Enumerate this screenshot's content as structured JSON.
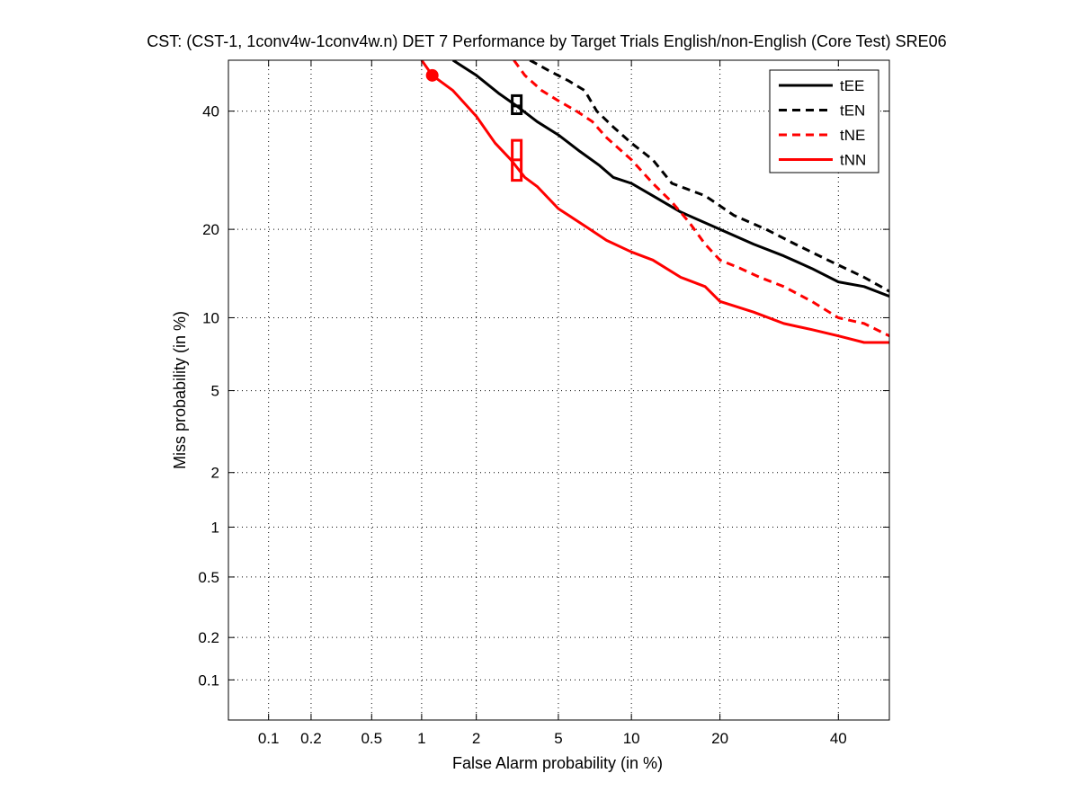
{
  "chart_data": {
    "type": "line",
    "title": "CST: (CST-1, 1conv4w-1conv4w.n) DET 7 Performance by Target Trials English/non-English (Core Test) SRE06",
    "xlabel": "False Alarm probability (in %)",
    "ylabel": "Miss probability (in %)",
    "x_scale": "probit",
    "y_scale": "probit",
    "xlim": [
      0.05,
      50
    ],
    "ylim": [
      0.05,
      50
    ],
    "x_ticks": [
      0.1,
      0.2,
      0.5,
      1,
      2,
      5,
      10,
      20,
      40
    ],
    "x_tick_labels": [
      "0.1",
      "0.2",
      "0.5",
      "1",
      "2",
      "5",
      "10",
      "20",
      "40"
    ],
    "y_ticks": [
      0.1,
      0.2,
      0.5,
      1,
      2,
      5,
      10,
      20,
      40
    ],
    "y_tick_labels": [
      "0.1",
      "0.2",
      "0.5",
      "1",
      "2",
      "5",
      "10",
      "20",
      "40"
    ],
    "grid": true,
    "legend_position": "top-right",
    "series": [
      {
        "name": "tEE",
        "color": "#000000",
        "style": "solid",
        "points": [
          [
            1.5,
            50
          ],
          [
            2.0,
            47
          ],
          [
            2.6,
            43.5
          ],
          [
            3.2,
            41
          ],
          [
            4.0,
            38
          ],
          [
            5.0,
            35.5
          ],
          [
            6.2,
            32.5
          ],
          [
            7.5,
            30
          ],
          [
            8.5,
            28
          ],
          [
            10,
            27
          ],
          [
            12,
            25
          ],
          [
            15,
            22.5
          ],
          [
            20,
            20
          ],
          [
            25,
            18
          ],
          [
            30,
            16.5
          ],
          [
            35,
            15
          ],
          [
            40,
            13.5
          ],
          [
            45,
            13
          ],
          [
            50,
            12
          ]
        ]
      },
      {
        "name": "tEN",
        "color": "#000000",
        "style": "dashed",
        "points": [
          [
            3.7,
            50
          ],
          [
            4.5,
            48
          ],
          [
            5.5,
            46
          ],
          [
            6.5,
            44
          ],
          [
            7.3,
            40
          ],
          [
            8.5,
            37
          ],
          [
            10,
            34
          ],
          [
            12,
            31
          ],
          [
            14,
            27
          ],
          [
            18,
            25
          ],
          [
            22,
            22
          ],
          [
            27,
            20
          ],
          [
            32,
            18
          ],
          [
            38,
            16
          ],
          [
            45,
            14
          ],
          [
            50,
            12.5
          ]
        ]
      },
      {
        "name": "tNE",
        "color": "#ff0000",
        "style": "dashed",
        "points": [
          [
            3.1,
            50
          ],
          [
            3.5,
            47
          ],
          [
            4.2,
            44
          ],
          [
            5.0,
            42
          ],
          [
            6.0,
            40
          ],
          [
            7.0,
            38
          ],
          [
            8.0,
            35
          ],
          [
            10,
            31
          ],
          [
            12,
            27
          ],
          [
            14,
            24
          ],
          [
            16,
            21
          ],
          [
            18,
            18
          ],
          [
            20,
            16
          ],
          [
            23,
            15
          ],
          [
            26,
            14
          ],
          [
            30,
            13
          ],
          [
            35,
            11.5
          ],
          [
            40,
            10
          ],
          [
            45,
            9.5
          ],
          [
            50,
            8.5
          ]
        ]
      },
      {
        "name": "tNN",
        "color": "#ff0000",
        "style": "solid",
        "points": [
          [
            1.0,
            50
          ],
          [
            1.15,
            47
          ],
          [
            1.5,
            44
          ],
          [
            2.0,
            39
          ],
          [
            2.5,
            34
          ],
          [
            3.0,
            31
          ],
          [
            3.5,
            28
          ],
          [
            4.0,
            26.5
          ],
          [
            5.0,
            23
          ],
          [
            6.5,
            20.5
          ],
          [
            8.0,
            18.5
          ],
          [
            10,
            17
          ],
          [
            12,
            16
          ],
          [
            15,
            14
          ],
          [
            18,
            13
          ],
          [
            20,
            11.5
          ],
          [
            25,
            10.5
          ],
          [
            30,
            9.5
          ],
          [
            35,
            9
          ],
          [
            40,
            8.5
          ],
          [
            45,
            8
          ],
          [
            50,
            8
          ]
        ]
      }
    ],
    "markers": [
      {
        "series": "tNN",
        "shape": "circle",
        "x": 1.15,
        "y": 47,
        "color": "#ff0000"
      },
      {
        "series": "tEE",
        "shape": "box",
        "x": 3.2,
        "y": 41,
        "y_low": 39.5,
        "y_high": 43,
        "color": "#000000"
      },
      {
        "series": "tNN",
        "shape": "box",
        "x": 3.2,
        "y": 31,
        "y_low": 27.5,
        "y_high": 34.5,
        "color": "#ff0000"
      }
    ]
  }
}
